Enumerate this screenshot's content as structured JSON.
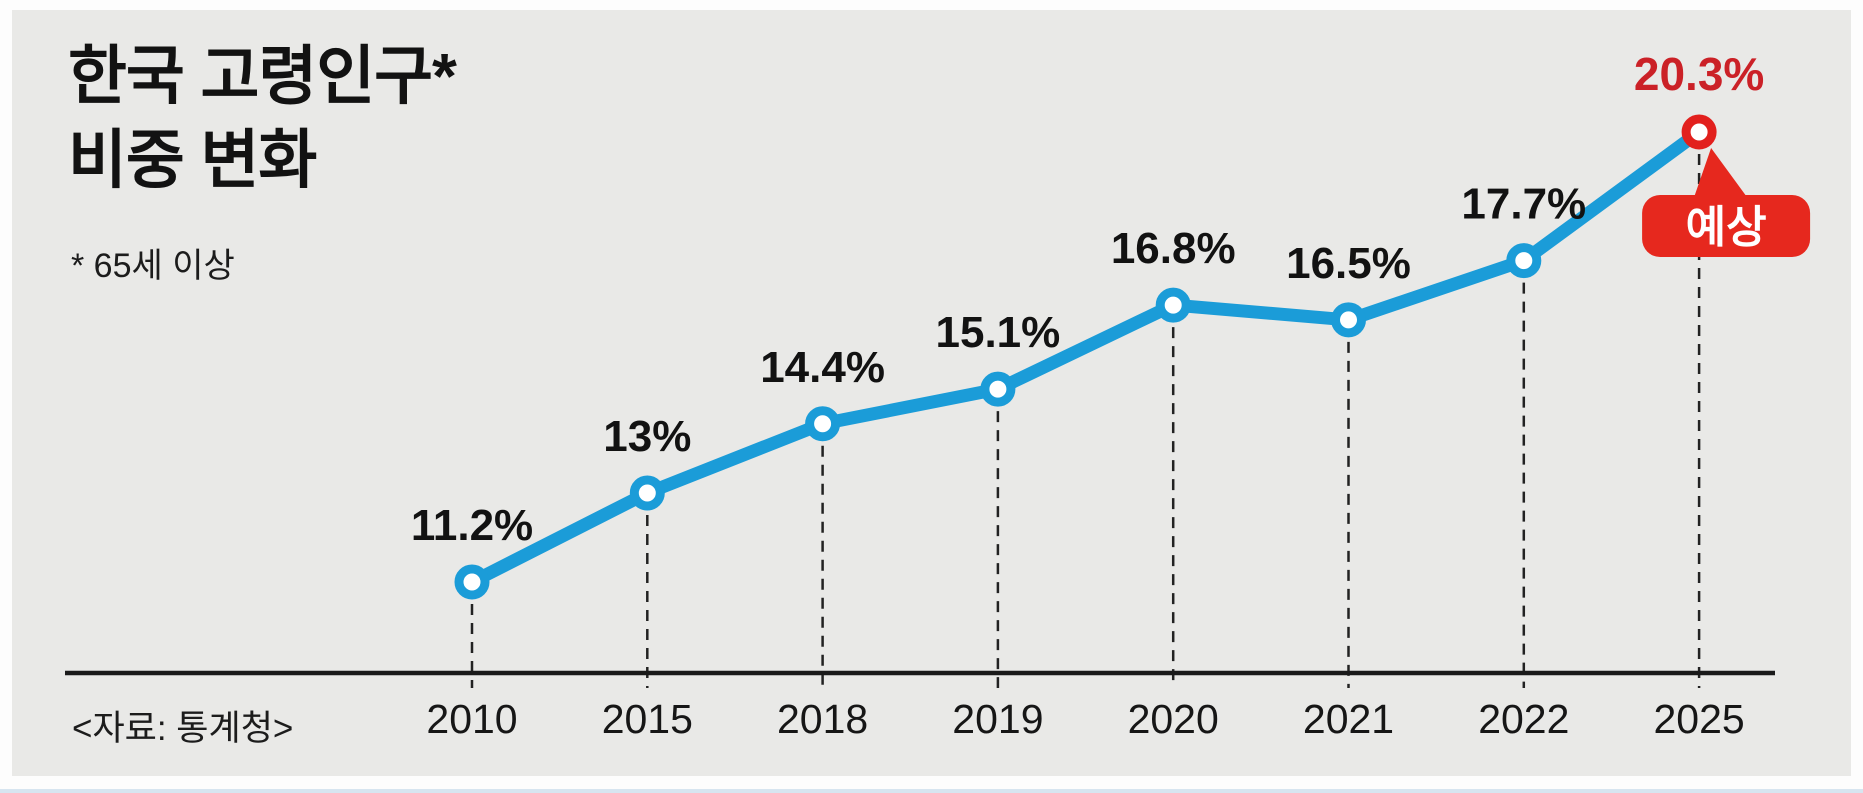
{
  "page": {
    "title_line1": "한국 고령인구*",
    "title_line2": "비중 변화",
    "footnote": "* 65세 이상",
    "source": "<자료: 통계청>"
  },
  "forecast_badge": {
    "label": "예상"
  },
  "colors": {
    "line_blue": "#1b9cd8",
    "marker_fill": "#ffffff",
    "forecast_red": "#e2201d",
    "value_red": "#cb2127",
    "badge_red": "#e6281e",
    "text_black": "#121212",
    "card_background": "#e9e9e7",
    "axis_black": "#1a1a1a"
  },
  "chart_data": {
    "type": "line",
    "title": "한국 고령인구(65세 이상) 비중 변화",
    "categories": [
      "2010",
      "2015",
      "2018",
      "2019",
      "2020",
      "2021",
      "2022",
      "2025"
    ],
    "values": [
      11.2,
      13,
      14.4,
      15.1,
      16.8,
      16.5,
      17.7,
      20.3
    ],
    "labels": [
      "11.2%",
      "13%",
      "14.4%",
      "15.1%",
      "16.8%",
      "16.5%",
      "17.7%",
      "20.3%"
    ],
    "unit": "%",
    "forecast_index": 7,
    "forecast_note": "예상",
    "xlabel": "",
    "ylabel": "",
    "grid": false,
    "marker": "open-circle",
    "guide_lines": "dashed-vertical",
    "source": "통계청"
  }
}
